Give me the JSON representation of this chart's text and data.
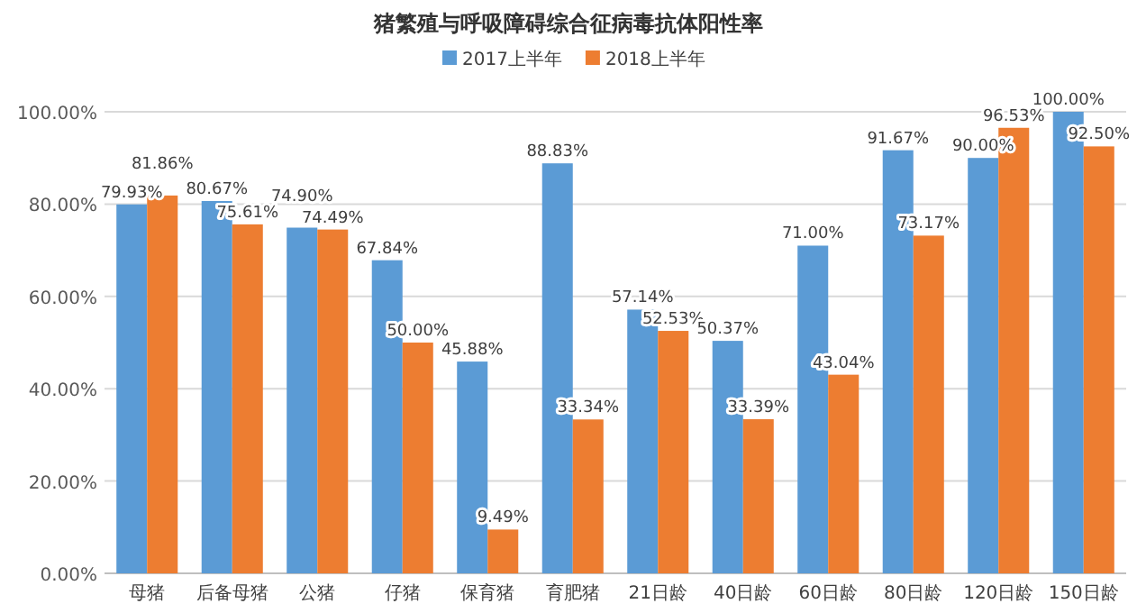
{
  "chart_data": {
    "type": "bar",
    "title": "猪繁殖与呼吸障碍综合征病毒抗体阳性率",
    "categories": [
      "母猪",
      "后备母猪",
      "公猪",
      "仔猪",
      "保育猪",
      "育肥猪",
      "21日龄",
      "40日龄",
      "60日龄",
      "80日龄",
      "120日龄",
      "150日龄"
    ],
    "series": [
      {
        "name": "2017上半年",
        "color": "#5b9bd5",
        "values": [
          79.93,
          80.67,
          74.9,
          67.84,
          45.88,
          88.83,
          57.14,
          50.37,
          71.0,
          91.67,
          90.0,
          100.0
        ],
        "value_labels": [
          "79.93%",
          "80.67%",
          "74.90%",
          "67.84%",
          "45.88%",
          "88.83%",
          "57.14%",
          "50.37%",
          "71.00%",
          "91.67%",
          "90.00%",
          "100.00%"
        ]
      },
      {
        "name": "2018上半年",
        "color": "#ed7d31",
        "values": [
          81.86,
          75.61,
          74.49,
          50.0,
          9.49,
          33.34,
          52.53,
          33.39,
          43.04,
          73.17,
          96.53,
          92.5
        ],
        "value_labels": [
          "81.86%",
          "75.61%",
          "74.49%",
          "50.00%",
          "9.49%",
          "33.34%",
          "52.53%",
          "33.39%",
          "43.04%",
          "73.17%",
          "96.53%",
          "92.50%"
        ]
      }
    ],
    "ylim": [
      0,
      100
    ],
    "yticks": [
      {
        "value": 0,
        "label": "0.00%"
      },
      {
        "value": 20,
        "label": "20.00%"
      },
      {
        "value": 40,
        "label": "40.00%"
      },
      {
        "value": 60,
        "label": "60.00%"
      },
      {
        "value": 80,
        "label": "80.00%"
      },
      {
        "value": 100,
        "label": "100.00%"
      }
    ],
    "grid": "y",
    "legend": "top"
  }
}
